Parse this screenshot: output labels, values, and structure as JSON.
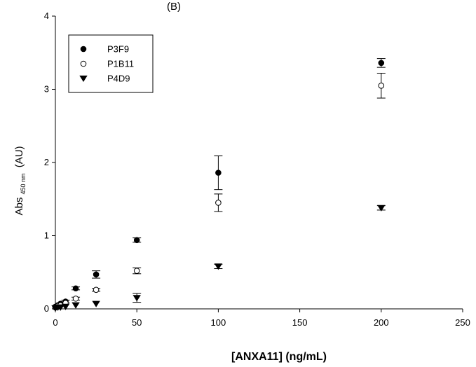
{
  "chart_data": {
    "type": "scatter",
    "title": "",
    "title_fragment": "(B)",
    "xlabel": "[ANXA11] (ng/mL)",
    "ylabel_main": "Abs",
    "ylabel_sub": "450 nm",
    "ylabel_unit": "(AU)",
    "xlim": [
      0,
      250
    ],
    "ylim": [
      0,
      4
    ],
    "xticks": [
      0,
      50,
      100,
      150,
      200,
      250
    ],
    "yticks": [
      0,
      1,
      2,
      3,
      4
    ],
    "grid": false,
    "legend_position": "top-left",
    "series": [
      {
        "name": "P3F9",
        "marker": "filled-circle",
        "x": [
          0,
          1.5625,
          3.125,
          6.25,
          12.5,
          25,
          50,
          100,
          200
        ],
        "y": [
          0.03,
          0.05,
          0.07,
          0.1,
          0.28,
          0.47,
          0.94,
          1.86,
          3.36
        ],
        "err": [
          0.01,
          0.01,
          0.01,
          0.02,
          0.02,
          0.05,
          0.03,
          0.23,
          0.06
        ]
      },
      {
        "name": "P1B11",
        "marker": "open-circle",
        "x": [
          0,
          1.5625,
          3.125,
          6.25,
          12.5,
          25,
          50,
          100,
          200
        ],
        "y": [
          0.02,
          0.04,
          0.05,
          0.08,
          0.14,
          0.26,
          0.52,
          1.45,
          3.05
        ],
        "err": [
          0.01,
          0.01,
          0.01,
          0.01,
          0.02,
          0.02,
          0.04,
          0.12,
          0.17
        ]
      },
      {
        "name": "P4D9",
        "marker": "filled-triangle-down",
        "x": [
          0,
          1.5625,
          3.125,
          6.25,
          12.5,
          25,
          50,
          100,
          200
        ],
        "y": [
          0.01,
          0.02,
          0.02,
          0.03,
          0.05,
          0.07,
          0.15,
          0.58,
          1.38
        ],
        "err": [
          0.005,
          0.005,
          0.005,
          0.01,
          0.01,
          0.01,
          0.06,
          0.03,
          0.03
        ]
      }
    ]
  }
}
